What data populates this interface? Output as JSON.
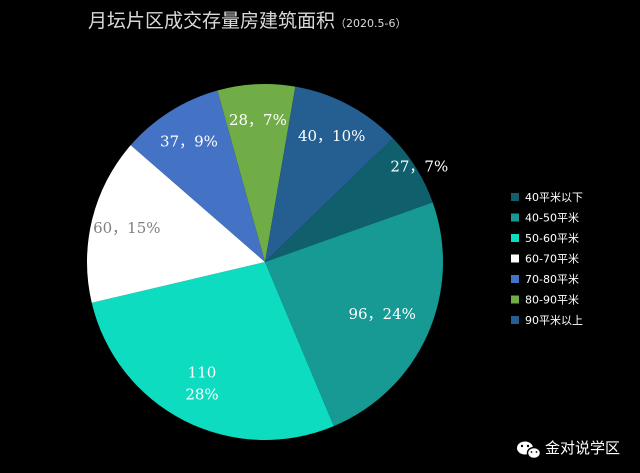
{
  "chart_data": {
    "type": "pie",
    "title": "月坛片区成交存量房建筑面积",
    "subtitle": "（2020.5-6）",
    "legend_position": "right",
    "slices": [
      {
        "name": "40平米以下",
        "value": 27,
        "percent": "7%",
        "label": "27，7%",
        "color": "#0f5f6d"
      },
      {
        "name": "40-50平米",
        "value": 96,
        "percent": "24%",
        "label": "96，24%",
        "color": "#179a94"
      },
      {
        "name": "50-60平米",
        "value": 110,
        "percent": "28%",
        "label_line1": "110",
        "label_line2": "28%",
        "color": "#0edcc0"
      },
      {
        "name": "60-70平米",
        "value": 60,
        "percent": "15%",
        "label": "60，15%",
        "color": "#ffffff"
      },
      {
        "name": "70-80平米",
        "value": 37,
        "percent": "9%",
        "label": "37，9%",
        "color": "#4472c4"
      },
      {
        "name": "80-90平米",
        "value": 28,
        "percent": "7%",
        "label": "28，7%",
        "color": "#70ad47"
      },
      {
        "name": "90平米以上",
        "value": 40,
        "percent": "10%",
        "label": "40，10%",
        "color": "#255e91"
      }
    ]
  },
  "watermark": {
    "text": "金对说学区",
    "icon": "wechat-icon"
  }
}
